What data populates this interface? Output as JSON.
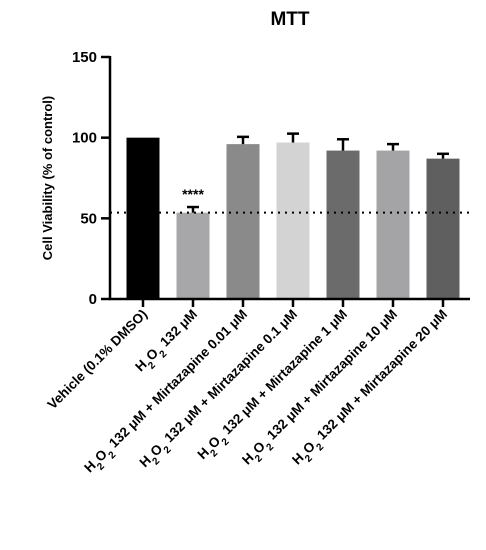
{
  "chart_data": {
    "type": "bar",
    "title": "MTT",
    "ylabel": "Cell Viability (% of control)",
    "xlabel": "",
    "ylim": [
      0,
      150
    ],
    "yticks": [
      0,
      50,
      100,
      150
    ],
    "categories": [
      "Vehicle (0.1% DMSO)",
      "H2O2 132 μM",
      "H2O2 132 μM + Mirtazapine 0.01 μM",
      "H2O2 132 μM + Mirtazapine 0.1 μM",
      "H2O2 132 μM + Mirtazapine 1 μM",
      "H2O2 132 μM + Mirtazapine 10 μM",
      "H2O2 132 μM + Mirtazapine 20 μM"
    ],
    "values": [
      100,
      53.5,
      96,
      97,
      92,
      92,
      87
    ],
    "errors": [
      0,
      3.5,
      4.5,
      5.5,
      7,
      4,
      3
    ],
    "colors": [
      "#000000",
      "#a7a7aa",
      "#8a8a8a",
      "#d3d3d3",
      "#6b6b6b",
      "#a4a4a7",
      "#5f5f5f"
    ],
    "significance": [
      {
        "category_index": 1,
        "label": "****"
      }
    ],
    "reference_line": {
      "y": 53.5,
      "style": "dotted"
    },
    "grid": false,
    "legend": "none"
  }
}
